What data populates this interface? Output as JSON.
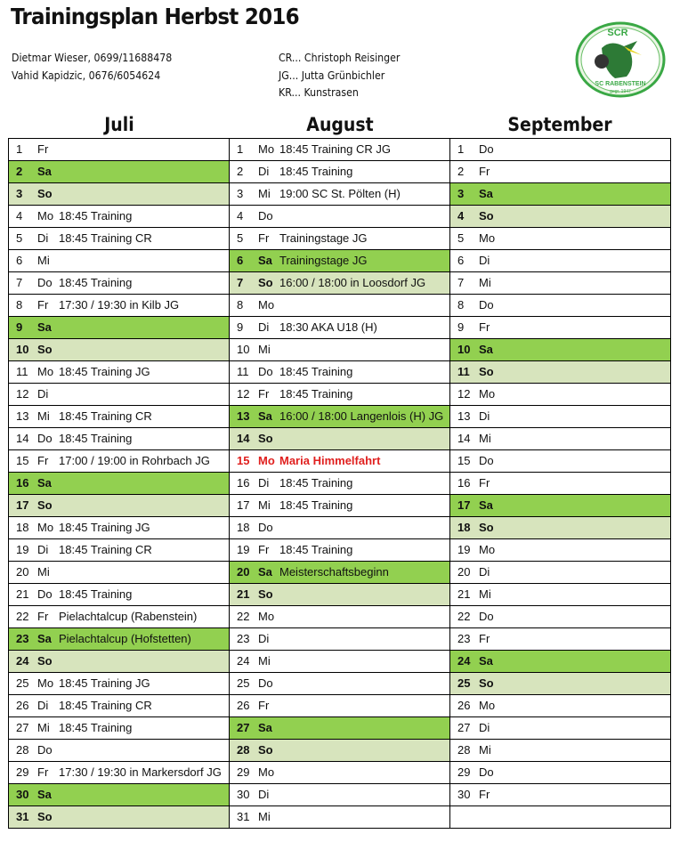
{
  "title": "Trainingsplan Herbst 2016",
  "contacts": [
    "Dietmar Wieser, 0699/11688478",
    "Vahid Kapidzic, 0676/6054624"
  ],
  "legend": [
    "CR... Christoph Reisinger",
    "JG... Jutta Grünbichler",
    "KR... Kunstrasen"
  ],
  "logo": {
    "top": "SCR",
    "bottom": "SC RABENSTEIN",
    "founded": "gegr. 1947"
  },
  "colors": {
    "saturday": "#92d050",
    "sunday": "#d7e4bd",
    "holiday": "#e0201f"
  },
  "months": [
    {
      "name": "Juli",
      "days": [
        {
          "n": "1",
          "d": "Fr",
          "t": ""
        },
        {
          "n": "2",
          "d": "Sa",
          "t": "",
          "k": "sa"
        },
        {
          "n": "3",
          "d": "So",
          "t": "",
          "k": "so"
        },
        {
          "n": "4",
          "d": "Mo",
          "t": "18:45 Training"
        },
        {
          "n": "5",
          "d": "Di",
          "t": "18:45 Training CR"
        },
        {
          "n": "6",
          "d": "Mi",
          "t": ""
        },
        {
          "n": "7",
          "d": "Do",
          "t": "18:45 Training"
        },
        {
          "n": "8",
          "d": "Fr",
          "t": "17:30 / 19:30 in Kilb JG"
        },
        {
          "n": "9",
          "d": "Sa",
          "t": "",
          "k": "sa"
        },
        {
          "n": "10",
          "d": "So",
          "t": "",
          "k": "so"
        },
        {
          "n": "11",
          "d": "Mo",
          "t": "18:45 Training JG"
        },
        {
          "n": "12",
          "d": "Di",
          "t": ""
        },
        {
          "n": "13",
          "d": "Mi",
          "t": "18:45 Training CR"
        },
        {
          "n": "14",
          "d": "Do",
          "t": "18:45 Training"
        },
        {
          "n": "15",
          "d": "Fr",
          "t": "17:00 / 19:00 in Rohrbach JG"
        },
        {
          "n": "16",
          "d": "Sa",
          "t": "",
          "k": "sa"
        },
        {
          "n": "17",
          "d": "So",
          "t": "",
          "k": "so"
        },
        {
          "n": "18",
          "d": "Mo",
          "t": "18:45 Training JG"
        },
        {
          "n": "19",
          "d": "Di",
          "t": "18:45 Training CR"
        },
        {
          "n": "20",
          "d": "Mi",
          "t": ""
        },
        {
          "n": "21",
          "d": "Do",
          "t": "18:45 Training"
        },
        {
          "n": "22",
          "d": "Fr",
          "t": "Pielachtalcup (Rabenstein)"
        },
        {
          "n": "23",
          "d": "Sa",
          "t": "Pielachtalcup (Hofstetten)",
          "k": "sa"
        },
        {
          "n": "24",
          "d": "So",
          "t": "",
          "k": "so"
        },
        {
          "n": "25",
          "d": "Mo",
          "t": "18:45 Training JG"
        },
        {
          "n": "26",
          "d": "Di",
          "t": "18:45 Training CR"
        },
        {
          "n": "27",
          "d": "Mi",
          "t": "18:45 Training"
        },
        {
          "n": "28",
          "d": "Do",
          "t": ""
        },
        {
          "n": "29",
          "d": "Fr",
          "t": "17:30 / 19:30 in Markersdorf JG"
        },
        {
          "n": "30",
          "d": "Sa",
          "t": "",
          "k": "sa"
        },
        {
          "n": "31",
          "d": "So",
          "t": "",
          "k": "so"
        }
      ]
    },
    {
      "name": "August",
      "days": [
        {
          "n": "1",
          "d": "Mo",
          "t": "18:45 Training CR JG"
        },
        {
          "n": "2",
          "d": "Di",
          "t": "18:45 Training"
        },
        {
          "n": "3",
          "d": "Mi",
          "t": "19:00 SC St. Pölten (H)"
        },
        {
          "n": "4",
          "d": "Do",
          "t": ""
        },
        {
          "n": "5",
          "d": "Fr",
          "t": "Trainingstage JG"
        },
        {
          "n": "6",
          "d": "Sa",
          "t": "Trainingstage JG",
          "k": "sa"
        },
        {
          "n": "7",
          "d": "So",
          "t": "16:00 / 18:00 in Loosdorf JG",
          "k": "so"
        },
        {
          "n": "8",
          "d": "Mo",
          "t": ""
        },
        {
          "n": "9",
          "d": "Di",
          "t": "18:30 AKA U18 (H)"
        },
        {
          "n": "10",
          "d": "Mi",
          "t": ""
        },
        {
          "n": "11",
          "d": "Do",
          "t": "18:45 Training"
        },
        {
          "n": "12",
          "d": "Fr",
          "t": "18:45 Training"
        },
        {
          "n": "13",
          "d": "Sa",
          "t": "16:00 / 18:00 Langenlois (H) JG",
          "k": "sa"
        },
        {
          "n": "14",
          "d": "So",
          "t": "",
          "k": "so"
        },
        {
          "n": "15",
          "d": "Mo",
          "t": "Maria Himmelfahrt",
          "k": "hol"
        },
        {
          "n": "16",
          "d": "Di",
          "t": "18:45 Training"
        },
        {
          "n": "17",
          "d": "Mi",
          "t": "18:45 Training"
        },
        {
          "n": "18",
          "d": "Do",
          "t": ""
        },
        {
          "n": "19",
          "d": "Fr",
          "t": "18:45 Training"
        },
        {
          "n": "20",
          "d": "Sa",
          "t": "Meisterschaftsbeginn",
          "k": "sa"
        },
        {
          "n": "21",
          "d": "So",
          "t": "",
          "k": "so"
        },
        {
          "n": "22",
          "d": "Mo",
          "t": ""
        },
        {
          "n": "23",
          "d": "Di",
          "t": ""
        },
        {
          "n": "24",
          "d": "Mi",
          "t": ""
        },
        {
          "n": "25",
          "d": "Do",
          "t": ""
        },
        {
          "n": "26",
          "d": "Fr",
          "t": ""
        },
        {
          "n": "27",
          "d": "Sa",
          "t": "",
          "k": "sa"
        },
        {
          "n": "28",
          "d": "So",
          "t": "",
          "k": "so"
        },
        {
          "n": "29",
          "d": "Mo",
          "t": ""
        },
        {
          "n": "30",
          "d": "Di",
          "t": ""
        },
        {
          "n": "31",
          "d": "Mi",
          "t": ""
        }
      ]
    },
    {
      "name": "September",
      "days": [
        {
          "n": "1",
          "d": "Do",
          "t": ""
        },
        {
          "n": "2",
          "d": "Fr",
          "t": ""
        },
        {
          "n": "3",
          "d": "Sa",
          "t": "",
          "k": "sa"
        },
        {
          "n": "4",
          "d": "So",
          "t": "",
          "k": "so"
        },
        {
          "n": "5",
          "d": "Mo",
          "t": ""
        },
        {
          "n": "6",
          "d": "Di",
          "t": ""
        },
        {
          "n": "7",
          "d": "Mi",
          "t": ""
        },
        {
          "n": "8",
          "d": "Do",
          "t": ""
        },
        {
          "n": "9",
          "d": "Fr",
          "t": ""
        },
        {
          "n": "10",
          "d": "Sa",
          "t": "",
          "k": "sa"
        },
        {
          "n": "11",
          "d": "So",
          "t": "",
          "k": "so"
        },
        {
          "n": "12",
          "d": "Mo",
          "t": ""
        },
        {
          "n": "13",
          "d": "Di",
          "t": ""
        },
        {
          "n": "14",
          "d": "Mi",
          "t": ""
        },
        {
          "n": "15",
          "d": "Do",
          "t": ""
        },
        {
          "n": "16",
          "d": "Fr",
          "t": ""
        },
        {
          "n": "17",
          "d": "Sa",
          "t": "",
          "k": "sa"
        },
        {
          "n": "18",
          "d": "So",
          "t": "",
          "k": "so"
        },
        {
          "n": "19",
          "d": "Mo",
          "t": ""
        },
        {
          "n": "20",
          "d": "Di",
          "t": ""
        },
        {
          "n": "21",
          "d": "Mi",
          "t": ""
        },
        {
          "n": "22",
          "d": "Do",
          "t": ""
        },
        {
          "n": "23",
          "d": "Fr",
          "t": ""
        },
        {
          "n": "24",
          "d": "Sa",
          "t": "",
          "k": "sa"
        },
        {
          "n": "25",
          "d": "So",
          "t": "",
          "k": "so"
        },
        {
          "n": "26",
          "d": "Mo",
          "t": ""
        },
        {
          "n": "27",
          "d": "Di",
          "t": ""
        },
        {
          "n": "28",
          "d": "Mi",
          "t": ""
        },
        {
          "n": "29",
          "d": "Do",
          "t": ""
        },
        {
          "n": "30",
          "d": "Fr",
          "t": ""
        },
        {
          "n": "",
          "d": "",
          "t": ""
        }
      ]
    }
  ]
}
